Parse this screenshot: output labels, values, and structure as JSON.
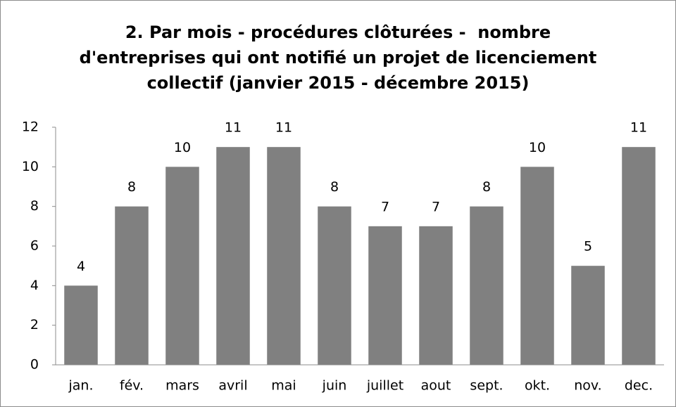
{
  "chart_data": {
    "type": "bar",
    "title": "2. Par mois - procédures clôturées -  nombre\nd'entreprises qui ont notifié un projet de licenciement\ncollectif (janvier 2015 - décembre 2015)",
    "categories": [
      "jan.",
      "fév.",
      "mars",
      "avril",
      "mai",
      "juin",
      "juillet",
      "aout",
      "sept.",
      "okt.",
      "nov.",
      "dec."
    ],
    "values": [
      4,
      8,
      10,
      11,
      11,
      8,
      7,
      7,
      8,
      10,
      5,
      11
    ],
    "color": "#808080",
    "ylim": [
      0,
      12
    ],
    "yticks": [
      0,
      2,
      4,
      6,
      8,
      10,
      12
    ],
    "grid": false
  }
}
